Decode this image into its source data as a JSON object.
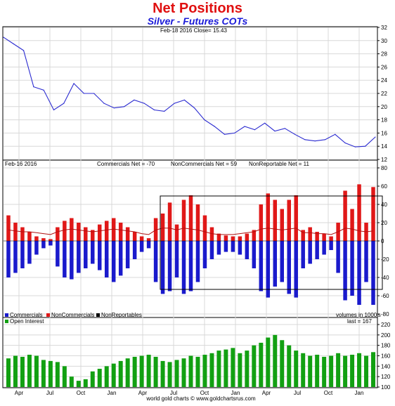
{
  "header": {
    "title": "Net Positions",
    "subtitle": "Silver - Futures COTs"
  },
  "colors": {
    "price_line": "#2a2ad0",
    "commercials": "#1a1acc",
    "noncommercials": "#e01818",
    "nonreportables": "#000000",
    "open_interest": "#12a012",
    "avg_line": "#b01010",
    "grid": "#d8d8d8"
  },
  "footer": {
    "credit": "world gold charts © www.goldchartsrus.com"
  },
  "chart_data": [
    {
      "type": "line",
      "panel": "price",
      "info": "Feb-18 2016   Close= 15.43",
      "ylim": [
        12,
        32
      ],
      "yticks": [
        12,
        14,
        16,
        18,
        20,
        22,
        24,
        26,
        28,
        30,
        32
      ],
      "x": [
        "2013-01",
        "2013-02",
        "2013-03",
        "2013-04",
        "2013-05",
        "2013-06",
        "2013-07",
        "2013-08",
        "2013-09",
        "2013-10",
        "2013-11",
        "2013-12",
        "2014-01",
        "2014-02",
        "2014-03",
        "2014-04",
        "2014-05",
        "2014-06",
        "2014-07",
        "2014-08",
        "2014-09",
        "2014-10",
        "2014-11",
        "2014-12",
        "2015-01",
        "2015-02",
        "2015-03",
        "2015-04",
        "2015-05",
        "2015-06",
        "2015-07",
        "2015-08",
        "2015-09",
        "2015-10",
        "2015-11",
        "2015-12",
        "2016-01",
        "2016-02"
      ],
      "values": [
        30.5,
        29.5,
        28.5,
        23.0,
        22.5,
        19.5,
        20.5,
        23.5,
        22.0,
        22.0,
        20.5,
        19.8,
        20.0,
        21.0,
        20.5,
        19.5,
        19.3,
        20.5,
        21.0,
        19.8,
        18.0,
        17.0,
        15.8,
        16.0,
        17.0,
        16.5,
        17.5,
        16.3,
        16.7,
        15.8,
        15.0,
        14.8,
        15.0,
        15.8,
        14.5,
        13.9,
        14.0,
        15.4
      ]
    },
    {
      "type": "bar",
      "panel": "net_positions",
      "info_date": "Feb-16 2016",
      "info_commercials": "Commercials Net = -70",
      "info_noncommercials": "NonCommercials Net = 59",
      "info_nonreportables": "NonReportable Net = 11",
      "ylim": [
        -80,
        80
      ],
      "yticks": [
        -80,
        -60,
        -40,
        -20,
        0,
        20,
        40,
        60,
        80
      ],
      "units_note": "volumes in 1000's",
      "legend": [
        "Commercials",
        "NonCommercials",
        "NonReportables"
      ],
      "series": [
        {
          "name": "NonCommercials",
          "values": [
            28,
            20,
            15,
            10,
            5,
            3,
            2,
            15,
            22,
            25,
            20,
            15,
            12,
            18,
            22,
            25,
            20,
            15,
            10,
            5,
            3,
            25,
            30,
            42,
            18,
            45,
            50,
            40,
            28,
            15,
            8,
            6,
            5,
            5,
            8,
            12,
            40,
            52,
            45,
            35,
            45,
            50,
            12,
            15,
            10,
            8,
            5,
            20,
            55,
            35,
            62,
            20,
            59
          ]
        },
        {
          "name": "Commercials",
          "values": [
            -40,
            -35,
            -30,
            -25,
            -15,
            -8,
            -5,
            -28,
            -40,
            -42,
            -35,
            -30,
            -25,
            -32,
            -40,
            -45,
            -38,
            -30,
            -20,
            -12,
            -8,
            -45,
            -58,
            -55,
            -40,
            -58,
            -55,
            -45,
            -30,
            -20,
            -15,
            -12,
            -12,
            -15,
            -20,
            -30,
            -55,
            -62,
            -50,
            -45,
            -58,
            -62,
            -30,
            -25,
            -20,
            -15,
            -10,
            -35,
            -65,
            -60,
            -70,
            -45,
            -70
          ]
        },
        {
          "name": "NonReportables",
          "values": [
            12,
            11,
            10,
            10,
            9,
            8,
            7,
            10,
            12,
            13,
            12,
            11,
            10,
            11,
            12,
            13,
            12,
            11,
            10,
            8,
            7,
            12,
            14,
            14,
            12,
            14,
            13,
            12,
            10,
            8,
            7,
            7,
            7,
            8,
            9,
            10,
            13,
            14,
            13,
            12,
            13,
            14,
            9,
            9,
            8,
            8,
            7,
            10,
            14,
            13,
            11,
            10,
            11
          ]
        }
      ]
    },
    {
      "type": "bar",
      "panel": "open_interest",
      "legend": [
        "Open Interest"
      ],
      "last_label": "last = 167",
      "ylim": [
        100,
        220
      ],
      "yticks": [
        100,
        120,
        140,
        160,
        180,
        200,
        220
      ],
      "xticks": [
        "Apr",
        "Jul",
        "Oct",
        "Jan",
        "Apr",
        "Jul",
        "Oct",
        "Jan",
        "Apr",
        "Jul",
        "Oct",
        "Jan"
      ],
      "values": [
        155,
        160,
        158,
        162,
        160,
        152,
        150,
        148,
        140,
        120,
        112,
        115,
        130,
        135,
        140,
        145,
        150,
        155,
        158,
        160,
        162,
        158,
        150,
        148,
        152,
        155,
        160,
        158,
        162,
        165,
        170,
        172,
        175,
        165,
        170,
        180,
        185,
        195,
        200,
        190,
        180,
        170,
        165,
        160,
        162,
        158,
        160,
        165,
        160,
        162,
        165,
        160,
        167
      ]
    }
  ]
}
